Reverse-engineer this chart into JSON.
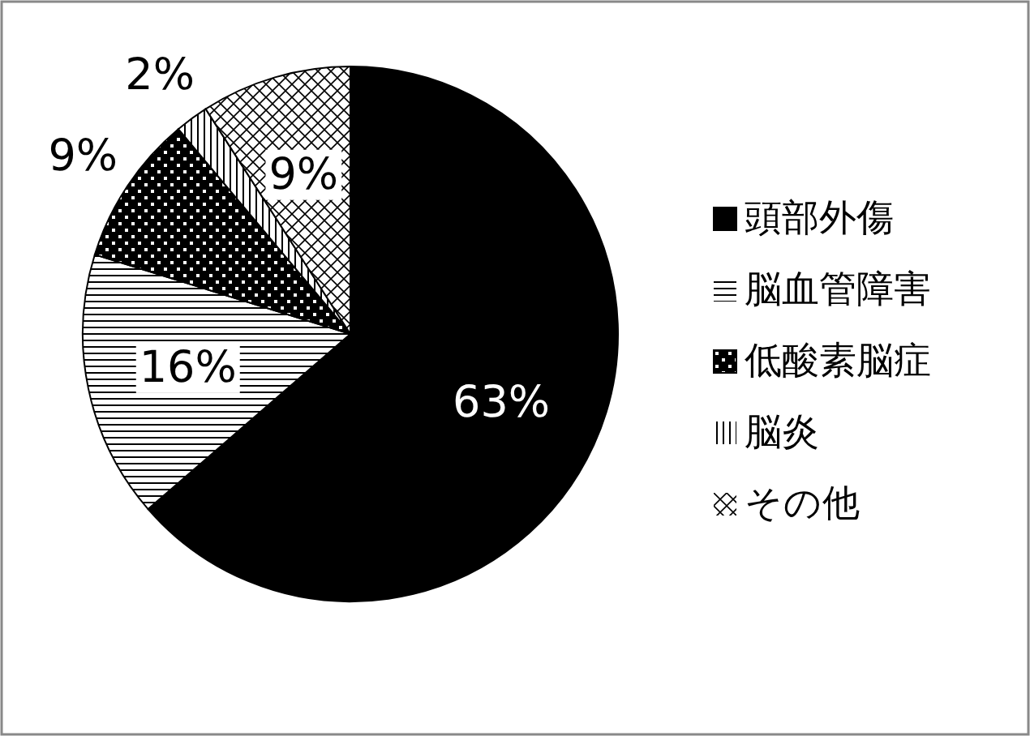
{
  "chart_data": {
    "type": "pie",
    "categories": [
      "頭部外傷",
      "脳血管障害",
      "低酸素脳症",
      "脳炎",
      "その他"
    ],
    "values": [
      63,
      16,
      9,
      2,
      9
    ],
    "colors": [
      "#000000",
      "#000000",
      "#000000",
      "#000000",
      "#000000"
    ],
    "value_labels": [
      "63%",
      "16%",
      "9%",
      "2%",
      "9%"
    ],
    "legend": "right"
  }
}
